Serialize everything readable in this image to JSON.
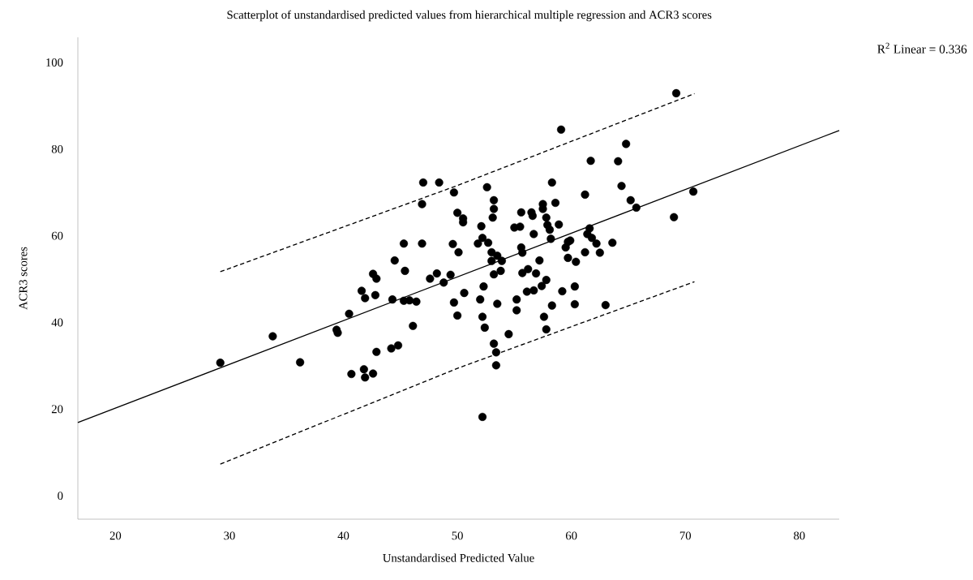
{
  "chart_data": {
    "type": "scatter",
    "title": "Scatterplot of unstandardised predicted values from hierarchical multiple regression and ACR3 scores",
    "xlabel": "Unstandardised Predicted Value",
    "ylabel": "ACR3 scores",
    "annotations": [
      "R$^{2}$ Linear = 0.336"
    ],
    "xlim": [
      16.7,
      83.5
    ],
    "ylim": [
      -5.4,
      105.8
    ],
    "xticks": [
      20,
      30,
      40,
      50,
      60,
      70,
      80
    ],
    "yticks": [
      0,
      20,
      40,
      60,
      80,
      100
    ],
    "grid": false,
    "series": [
      {
        "color": "#000000",
        "marker": "circle",
        "x": [
          29.2,
          33.8,
          36.2,
          39.4,
          39.5,
          40.5,
          40.7,
          41.8,
          41.9,
          42.6,
          42.9,
          44.2,
          44.8,
          47.0,
          48.4,
          46.9,
          49.7,
          52.6,
          53.2,
          53.2,
          53.1,
          50.0,
          50.5,
          50.5,
          52.1,
          45.3,
          46.9,
          49.6,
          50.1,
          44.5,
          45.4,
          42.6,
          42.9,
          41.6,
          41.9,
          42.8,
          44.3,
          45.3,
          45.8,
          46.4,
          46.1,
          47.6,
          48.2,
          48.8,
          49.4,
          50.6,
          49.7,
          50.0,
          51.8,
          52.2,
          52.7,
          53.0,
          53.5,
          53.9,
          53.0,
          53.2,
          53.8,
          52.3,
          52.0,
          53.5,
          52.2,
          52.4,
          55.6,
          56.5,
          56.6,
          57.5,
          57.5,
          58.3,
          58.6,
          61.2,
          61.7,
          57.8,
          57.9,
          58.1,
          58.2,
          58.9,
          55.0,
          55.5,
          56.7,
          55.6,
          55.7,
          57.2,
          55.7,
          56.2,
          56.9,
          57.8,
          57.4,
          56.7,
          56.1,
          55.2,
          55.2,
          57.6,
          58.3,
          57.8,
          59.2,
          60.3,
          60.3,
          59.7,
          59.9,
          59.5,
          59.7,
          60.4,
          61.2,
          61.6,
          61.4,
          61.8,
          62.2,
          62.5,
          52.2,
          53.4,
          53.4,
          53.2,
          54.5,
          63.0,
          69.2,
          64.8,
          64.1,
          64.4,
          65.2,
          65.7,
          70.7,
          69.0,
          63.6,
          59.1
        ],
        "values": [
          30.7,
          36.8,
          30.8,
          38.3,
          37.6,
          42.0,
          28.1,
          29.2,
          27.3,
          28.2,
          33.2,
          34.0,
          34.7,
          72.3,
          72.3,
          67.3,
          70.0,
          71.2,
          68.2,
          66.2,
          64.2,
          65.3,
          64.0,
          63.1,
          62.2,
          58.2,
          58.2,
          58.1,
          56.2,
          54.3,
          51.9,
          51.2,
          50.1,
          47.3,
          45.6,
          46.3,
          45.3,
          45.0,
          45.1,
          44.8,
          39.2,
          50.1,
          51.3,
          49.2,
          51.0,
          46.8,
          44.6,
          41.6,
          58.2,
          59.5,
          58.4,
          56.2,
          55.4,
          54.2,
          54.2,
          51.1,
          51.9,
          48.3,
          45.3,
          44.3,
          41.3,
          38.8,
          65.4,
          65.4,
          64.6,
          67.3,
          66.2,
          72.3,
          67.6,
          69.5,
          77.3,
          64.2,
          62.5,
          61.4,
          59.3,
          62.6,
          61.9,
          62.1,
          60.4,
          57.3,
          56.1,
          54.3,
          51.4,
          52.3,
          51.3,
          49.8,
          48.4,
          47.4,
          47.1,
          45.3,
          42.8,
          41.3,
          43.9,
          38.4,
          47.2,
          48.3,
          44.2,
          58.6,
          58.9,
          57.3,
          54.9,
          54.0,
          56.2,
          61.7,
          60.4,
          59.5,
          58.2,
          56.1,
          18.2,
          30.1,
          33.1,
          35.1,
          37.3,
          44.0,
          92.9,
          81.2,
          77.2,
          71.5,
          68.2,
          66.5,
          70.2,
          64.3,
          58.4,
          84.5
        ]
      },
      {
        "type": "line",
        "color": "#000000",
        "marker": "none",
        "line_style": "solid",
        "x": [
          16.7,
          83.5
        ],
        "values": [
          16.9,
          84.3
        ]
      },
      {
        "type": "line",
        "color": "#000000",
        "marker": "none",
        "line_style": "dashed",
        "x": [
          29.2,
          50.0,
          70.8
        ],
        "values": [
          51.7,
          71.6,
          92.8
        ]
      },
      {
        "type": "line",
        "color": "#000000",
        "marker": "none",
        "line_style": "dashed",
        "x": [
          29.2,
          50.0,
          70.8
        ],
        "values": [
          7.3,
          29.4,
          49.4
        ]
      }
    ]
  }
}
